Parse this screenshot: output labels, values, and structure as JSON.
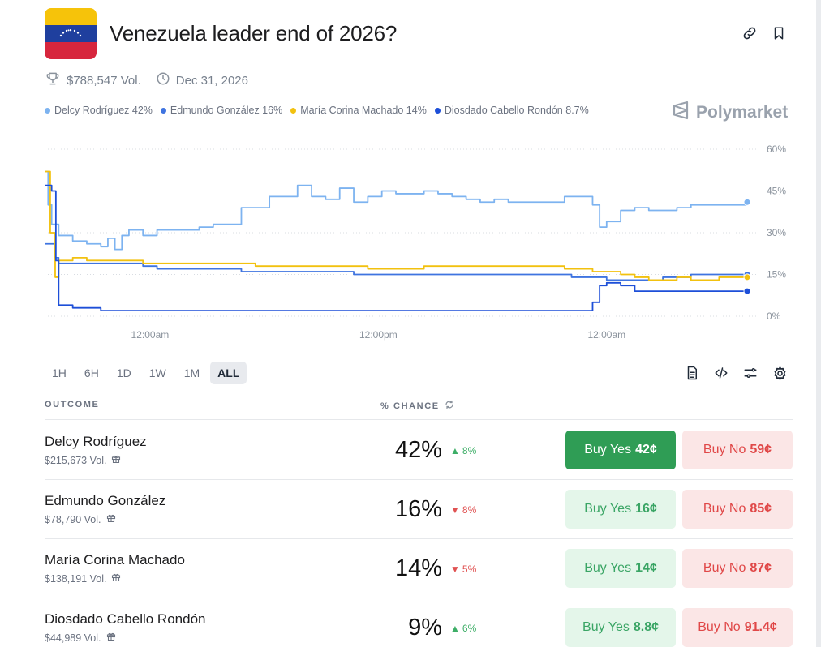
{
  "market": {
    "title": "Venezuela leader end of 2026?",
    "volume": "$788,547 Vol.",
    "end_date": "Dec 31, 2026",
    "brand": "Polymarket"
  },
  "legend": [
    {
      "label": "Delcy Rodríguez 42%",
      "color": "#7db3f0"
    },
    {
      "label": "Edmundo González 16%",
      "color": "#3f74e0"
    },
    {
      "label": "María Corina Machado 14%",
      "color": "#f2c10f"
    },
    {
      "label": "Diosdado Cabello Rondón 8.7%",
      "color": "#1d4fd8"
    }
  ],
  "ranges": [
    {
      "label": "1H",
      "active": false
    },
    {
      "label": "6H",
      "active": false
    },
    {
      "label": "1D",
      "active": false
    },
    {
      "label": "1W",
      "active": false
    },
    {
      "label": "1M",
      "active": false
    },
    {
      "label": "ALL",
      "active": true
    }
  ],
  "table": {
    "outcome_header": "OUTCOME",
    "chance_header": "% CHANCE",
    "rows": [
      {
        "name": "Delcy Rodríguez",
        "volume": "$215,673 Vol.",
        "chance": "42%",
        "change": "8%",
        "change_dir": "up",
        "yes_label": "Buy Yes",
        "yes_price": "42¢",
        "no_label": "Buy No",
        "no_price": "59¢",
        "yes_solid": true
      },
      {
        "name": "Edmundo González",
        "volume": "$78,790 Vol.",
        "chance": "16%",
        "change": "8%",
        "change_dir": "down",
        "yes_label": "Buy Yes",
        "yes_price": "16¢",
        "no_label": "Buy No",
        "no_price": "85¢",
        "yes_solid": false
      },
      {
        "name": "María Corina Machado",
        "volume": "$138,191 Vol.",
        "chance": "14%",
        "change": "5%",
        "change_dir": "down",
        "yes_label": "Buy Yes",
        "yes_price": "14¢",
        "no_label": "Buy No",
        "no_price": "87¢",
        "yes_solid": false
      },
      {
        "name": "Diosdado Cabello Rondón",
        "volume": "$44,989 Vol.",
        "chance": "9%",
        "change": "6%",
        "change_dir": "up",
        "yes_label": "Buy Yes",
        "yes_price": "8.8¢",
        "no_label": "Buy No",
        "no_price": "91.4¢",
        "yes_solid": false
      }
    ]
  },
  "chart_data": {
    "type": "line",
    "ylim": [
      0,
      60
    ],
    "y_ticks": [
      "60%",
      "45%",
      "30%",
      "15%",
      "0%"
    ],
    "x_ticks": [
      "12:00am",
      "12:00pm",
      "12:00am"
    ],
    "grid": true,
    "series": [
      {
        "name": "Delcy Rodríguez",
        "color": "#7db3f0",
        "x": [
          0,
          0.5,
          1,
          2,
          3,
          4,
          6,
          8,
          9,
          10,
          11,
          12,
          14,
          16,
          18,
          20,
          22,
          24,
          26,
          28,
          30,
          32,
          34,
          36,
          38,
          40,
          42,
          44,
          46,
          48,
          50,
          52,
          54,
          56,
          58,
          60,
          62,
          64,
          66,
          68,
          70,
          72,
          74,
          76,
          78,
          79,
          80,
          82,
          84,
          86,
          88,
          90,
          92,
          94,
          96,
          98,
          100
        ],
        "values": [
          52,
          40,
          33,
          29,
          29,
          27,
          26,
          25,
          28,
          24,
          29,
          31,
          29,
          31,
          31,
          31,
          32,
          33,
          33,
          39,
          39,
          43,
          43,
          47,
          43,
          42,
          46,
          41,
          43,
          45,
          44,
          44,
          45,
          44,
          43,
          42,
          41,
          42,
          41,
          41,
          41,
          41,
          43,
          43,
          40,
          32,
          34,
          38,
          39,
          38,
          38,
          39,
          40,
          40,
          40,
          40,
          41
        ]
      },
      {
        "name": "Edmundo González",
        "color": "#3f74e0",
        "x": [
          0,
          1,
          1.5,
          2,
          4,
          6,
          8,
          10,
          12,
          14,
          16,
          18,
          20,
          24,
          28,
          32,
          36,
          40,
          44,
          48,
          50,
          55,
          60,
          65,
          70,
          75,
          80,
          82,
          84,
          86,
          88,
          90,
          92,
          94,
          96,
          98,
          100
        ],
        "values": [
          26,
          26,
          21,
          19,
          19,
          19,
          19,
          19,
          19,
          18,
          17,
          17,
          17,
          17,
          16,
          16,
          16,
          16,
          15,
          15,
          15,
          15,
          15,
          15,
          15,
          14,
          13,
          13,
          13,
          13,
          14,
          14,
          15,
          15,
          15,
          15,
          15
        ]
      },
      {
        "name": "María Corina Machado",
        "color": "#f2c10f",
        "x": [
          0,
          0.8,
          1.5,
          2,
          4,
          6,
          8,
          10,
          14,
          18,
          22,
          26,
          30,
          34,
          38,
          42,
          46,
          50,
          54,
          58,
          62,
          66,
          70,
          74,
          78,
          80,
          82,
          84,
          86,
          88,
          90,
          92,
          94,
          96,
          98,
          100
        ],
        "values": [
          52,
          30,
          14,
          20,
          21,
          20,
          20,
          20,
          19,
          19,
          19,
          19,
          18,
          18,
          18,
          18,
          17,
          17,
          18,
          18,
          18,
          18,
          18,
          17,
          16,
          16,
          15,
          14,
          13,
          13,
          14,
          13,
          13,
          14,
          14,
          14
        ]
      },
      {
        "name": "Diosdado Cabello Rondón",
        "color": "#1d4fd8",
        "x": [
          0,
          1,
          1.6,
          2,
          4,
          6,
          8,
          10,
          12,
          16,
          20,
          24,
          28,
          32,
          36,
          40,
          44,
          48,
          52,
          56,
          60,
          64,
          68,
          72,
          76,
          78,
          79,
          80,
          82,
          84,
          86,
          88,
          90,
          92,
          94,
          96,
          98,
          100
        ],
        "values": [
          47,
          45,
          20,
          4,
          3,
          3,
          2,
          2,
          2,
          2,
          2,
          2,
          2,
          2,
          2,
          2,
          2,
          2,
          2,
          2,
          2,
          2,
          2,
          2,
          2,
          5,
          11,
          12,
          11,
          9,
          9,
          9,
          9,
          9,
          9,
          9,
          9,
          9
        ]
      }
    ]
  }
}
